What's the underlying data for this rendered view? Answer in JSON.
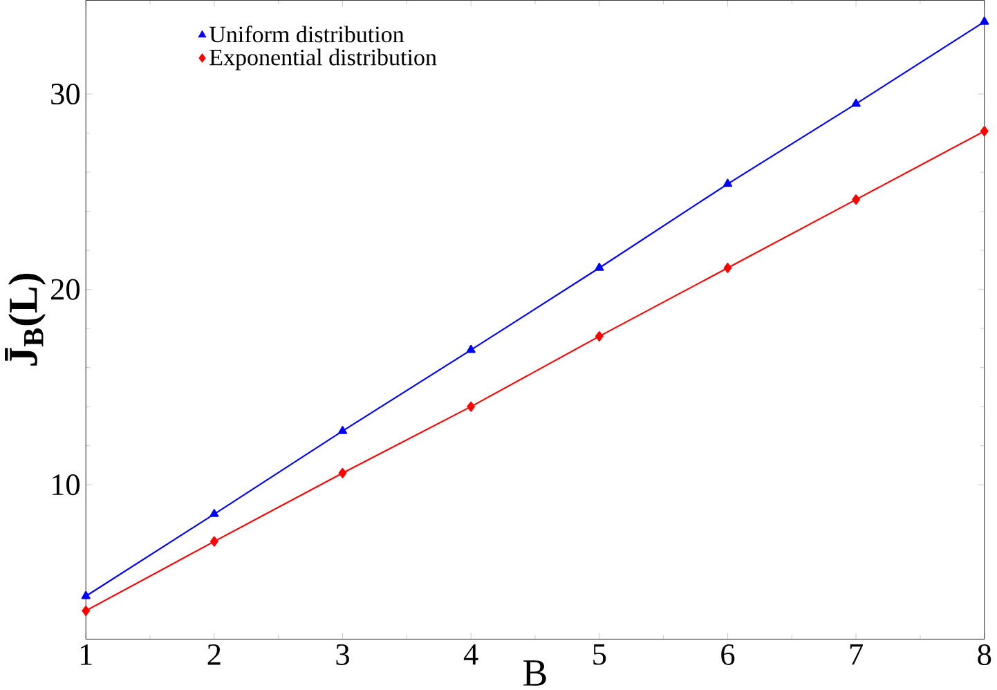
{
  "chart_data": {
    "type": "line",
    "xlabel": "B",
    "ylabel": "J̄$_{B}$(L)",
    "x": [
      1,
      2,
      3,
      4,
      5,
      6,
      7,
      8
    ],
    "series": [
      {
        "name": "Uniform distribution",
        "color": "#0000ff",
        "marker": "triangle",
        "values": [
          4.3,
          8.5,
          12.75,
          16.9,
          21.1,
          25.4,
          29.5,
          33.7
        ]
      },
      {
        "name": "Exponential distribution",
        "color": "#ff0000",
        "marker": "diamond",
        "values": [
          3.55,
          7.1,
          10.6,
          14.0,
          17.6,
          21.1,
          24.6,
          28.1
        ]
      }
    ],
    "xlim": [
      1,
      8
    ],
    "ylim": [
      2.1,
      34.8
    ],
    "xticks": [
      1,
      2,
      3,
      4,
      5,
      6,
      7,
      8
    ],
    "yticks": [
      10,
      20,
      30
    ],
    "grid": false,
    "legend": "top left"
  }
}
